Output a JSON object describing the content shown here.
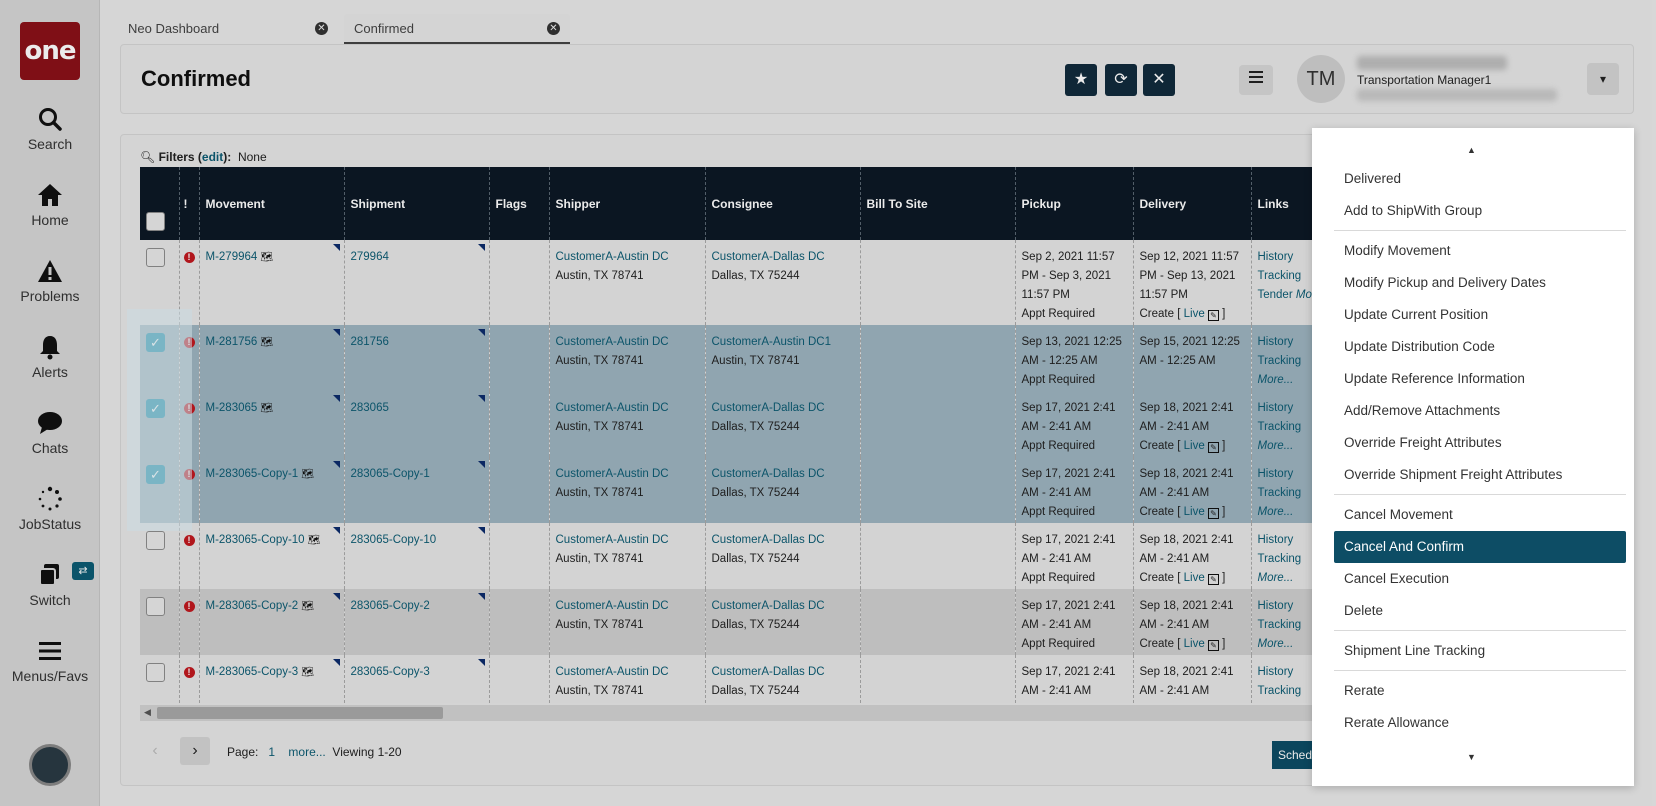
{
  "app": {
    "logo_text": "one"
  },
  "nav": {
    "search": "Search",
    "home": "Home",
    "problems": "Problems",
    "alerts": "Alerts",
    "chats": "Chats",
    "jobstatus": "JobStatus",
    "switch": "Switch",
    "menus": "Menus/Favs"
  },
  "tabs": [
    {
      "label": "Neo Dashboard"
    },
    {
      "label": "Confirmed"
    }
  ],
  "header": {
    "title": "Confirmed",
    "user_initials": "TM",
    "user_name": "Transportation Manager1"
  },
  "filters": {
    "label": "Filters (",
    "edit": "edit",
    "suffix": "):",
    "value": "None"
  },
  "columns": [
    "!",
    "Movement",
    "Shipment",
    "Flags",
    "Shipper",
    "Consignee",
    "Bill To Site",
    "Pickup",
    "Delivery",
    "Links"
  ],
  "rows": [
    {
      "checked": false,
      "movement": "M-279964",
      "shipment": "279964",
      "shipper": "CustomerA-Austin DC",
      "shipper_addr": "Austin, TX 78741",
      "consignee": "CustomerA-Dallas DC",
      "consignee_addr": "Dallas, TX 75244",
      "pickup1": "Sep 2, 2021 11:57",
      "pickup2": "PM - Sep 3, 2021",
      "pickup3": "11:57 PM",
      "pickup4": "Appt Required",
      "delivery1": "Sep 12, 2021 11:57",
      "delivery2": "PM - Sep 13, 2021",
      "delivery3": "11:57 PM",
      "delivery_create": "Create [",
      "link1": "History",
      "link2": "Tracking",
      "link3": "Tender",
      "more": "More..."
    },
    {
      "checked": true,
      "movement": "M-281756",
      "shipment": "281756",
      "shipper": "CustomerA-Austin DC",
      "shipper_addr": "Austin, TX 78741",
      "consignee": "CustomerA-Austin DC1",
      "consignee_addr": "Austin, TX 78741",
      "pickup1": "Sep 13, 2021 12:25",
      "pickup2": "AM - 12:25 AM",
      "pickup3": "Appt Required",
      "delivery1": "Sep 15, 2021 12:25",
      "delivery2": "AM - 12:25 AM",
      "link1": "History",
      "link2": "Tracking",
      "more": "More..."
    },
    {
      "checked": true,
      "movement": "M-283065",
      "shipment": "283065",
      "shipper": "CustomerA-Austin DC",
      "shipper_addr": "Austin, TX 78741",
      "consignee": "CustomerA-Dallas DC",
      "consignee_addr": "Dallas, TX 75244",
      "pickup1": "Sep 17, 2021 2:41",
      "pickup2": "AM - 2:41 AM",
      "pickup3": "Appt Required",
      "delivery1": "Sep 18, 2021 2:41",
      "delivery2": "AM - 2:41 AM",
      "delivery_create": "Create [",
      "link1": "History",
      "link2": "Tracking",
      "more": "More..."
    },
    {
      "checked": true,
      "movement": "M-283065-Copy-1",
      "shipment": "283065-Copy-1",
      "shipper": "CustomerA-Austin DC",
      "shipper_addr": "Austin, TX 78741",
      "consignee": "CustomerA-Dallas DC",
      "consignee_addr": "Dallas, TX 75244",
      "pickup1": "Sep 17, 2021 2:41",
      "pickup2": "AM - 2:41 AM",
      "pickup3": "Appt Required",
      "delivery1": "Sep 18, 2021 2:41",
      "delivery2": "AM - 2:41 AM",
      "delivery_create": "Create [",
      "link1": "History",
      "link2": "Tracking",
      "more": "More..."
    },
    {
      "checked": false,
      "movement": "M-283065-Copy-10",
      "shipment": "283065-Copy-10",
      "shipper": "CustomerA-Austin DC",
      "shipper_addr": "Austin, TX 78741",
      "consignee": "CustomerA-Dallas DC",
      "consignee_addr": "Dallas, TX 75244",
      "pickup1": "Sep 17, 2021 2:41",
      "pickup2": "AM - 2:41 AM",
      "pickup3": "Appt Required",
      "delivery1": "Sep 18, 2021 2:41",
      "delivery2": "AM - 2:41 AM",
      "delivery_create": "Create [",
      "link1": "History",
      "link2": "Tracking",
      "more": "More..."
    },
    {
      "checked": false,
      "movement": "M-283065-Copy-2",
      "shipment": "283065-Copy-2",
      "shipper": "CustomerA-Austin DC",
      "shipper_addr": "Austin, TX 78741",
      "consignee": "CustomerA-Dallas DC",
      "consignee_addr": "Dallas, TX 75244",
      "pickup1": "Sep 17, 2021 2:41",
      "pickup2": "AM - 2:41 AM",
      "pickup3": "Appt Required",
      "delivery1": "Sep 18, 2021 2:41",
      "delivery2": "AM - 2:41 AM",
      "delivery_create": "Create [",
      "link1": "History",
      "link2": "Tracking",
      "more": "More..."
    },
    {
      "checked": false,
      "movement": "M-283065-Copy-3",
      "shipment": "283065-Copy-3",
      "shipper": "CustomerA-Austin DC",
      "shipper_addr": "Austin, TX 78741",
      "consignee": "CustomerA-Dallas DC",
      "consignee_addr": "Dallas, TX 75244",
      "pickup1": "Sep 17, 2021 2:41",
      "pickup2": "AM - 2:41 AM",
      "delivery1": "Sep 18, 2021 2:41",
      "delivery2": "AM - 2:41 AM",
      "link1": "History",
      "link2": "Tracking"
    }
  ],
  "live_label": "Live",
  "pager": {
    "page_label": "Page:",
    "page": "1",
    "more": "more...",
    "viewing": "Viewing 1-20"
  },
  "schedule_button": "Schedul",
  "menu": {
    "items": [
      "Delivered",
      "Add to ShipWith Group",
      "Modify Movement",
      "Modify Pickup and Delivery Dates",
      "Update Current Position",
      "Update Distribution Code",
      "Update Reference Information",
      "Add/Remove Attachments",
      "Override Freight Attributes",
      "Override Shipment Freight Attributes",
      "Cancel Movement",
      "Cancel And Confirm",
      "Cancel Execution",
      "Delete",
      "Shipment Line Tracking",
      "Rerate",
      "Rerate Allowance"
    ],
    "active": "Cancel And Confirm"
  },
  "colors": {
    "brand": "#8a1118",
    "header_dark": "#0c1825",
    "accent": "#0d4d65",
    "selected_row": "#9db3bf",
    "checkbox": "#1b93b0",
    "link": "#0d5c73"
  }
}
